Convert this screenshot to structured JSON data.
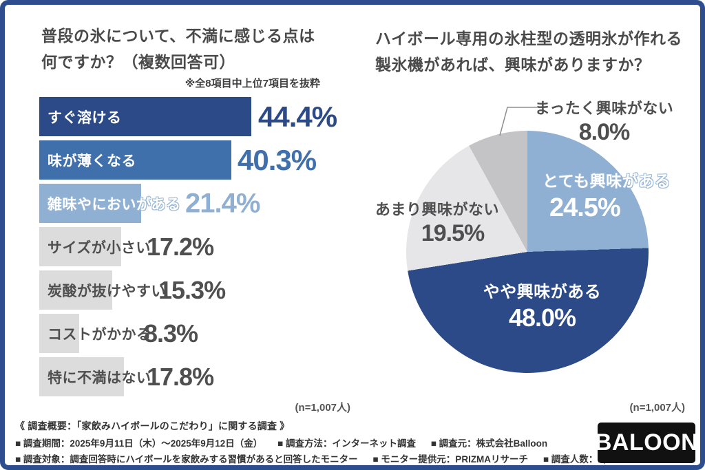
{
  "colors": {
    "frame": "#2e4d8e",
    "navy": "#2c4a87",
    "medium_blue": "#4070ab",
    "light_blue": "#8fb0d2",
    "bar_gray": "#dcdcdc",
    "pie_light_gray": "#e6e6e8",
    "pie_mid_gray": "#c4c4c6",
    "text_dark": "#4a4a4a"
  },
  "left_chart": {
    "title_line1": "普段の氷について、不満に感じる点は",
    "title_line2": "何ですか？（複数回答可）",
    "note": "※全8項目中上位7項目を抜粋",
    "n_label": "(n=1,007人)",
    "bars": [
      {
        "label": "すぐ溶ける",
        "value": "44.4%"
      },
      {
        "label": "味が薄くなる",
        "value": "40.3%"
      },
      {
        "label": "雑味やにおいがある",
        "value": "21.4%"
      },
      {
        "label": "サイズが小さい",
        "value": "17.2%"
      },
      {
        "label": "炭酸が抜けやすい",
        "value": "15.3%"
      },
      {
        "label": "コストがかかる",
        "value": "8.3%"
      },
      {
        "label": "特に不満はない",
        "value": "17.8%"
      }
    ]
  },
  "right_chart": {
    "title_line1": "ハイボール専用の氷柱型の透明氷が作れる",
    "title_line2": "製氷機があれば、興味がありますか？",
    "n_label": "(n=1,007人)",
    "slices": [
      {
        "label": "とても興味がある",
        "value": "24.5%"
      },
      {
        "label": "やや興味がある",
        "value": "48.0%"
      },
      {
        "label": "あまり興味がない",
        "value": "19.5%"
      },
      {
        "label": "まったく興味がない",
        "value": "8.0%"
      }
    ]
  },
  "footer": {
    "heading": "《 調査概要：「家飲みハイボールのこだわり」に関する調査 》",
    "row1": [
      "■ 調査期間：2025年9月11日（木）～2025年9月12日（金）",
      "■ 調査方法：インターネット調査",
      "■ 調査元：株式会社Balloon"
    ],
    "row2": [
      "■ 調査対象：調査回答時にハイボールを家飲みする習慣があると回答したモニター",
      "■ モニター提供元：PRIZMAリサーチ",
      "■ 調査人数：1,007人"
    ],
    "logo": "BALOON"
  },
  "chart_data": [
    {
      "type": "bar",
      "orientation": "horizontal",
      "title": "普段の氷について、不満に感じる点は何ですか？（複数回答可）",
      "note": "※全8項目中上位7項目を抜粋",
      "categories": [
        "すぐ溶ける",
        "味が薄くなる",
        "雑味やにおいがある",
        "サイズが小さい",
        "炭酸が抜けやすい",
        "コストがかかる",
        "特に不満はない"
      ],
      "values": [
        44.4,
        40.3,
        21.4,
        17.2,
        15.3,
        8.3,
        17.8
      ],
      "unit": "%",
      "xlim": [
        0,
        50
      ],
      "sample_size": "n=1,007人",
      "bar_colors": [
        "#2c4a87",
        "#4070ab",
        "#8fb0d2",
        "#dcdcdc",
        "#dcdcdc",
        "#dcdcdc",
        "#dcdcdc"
      ]
    },
    {
      "type": "pie",
      "title": "ハイボール専用の氷柱型の透明氷が作れる製氷機があれば、興味がありますか？",
      "labels": [
        "とても興味がある",
        "やや興味がある",
        "あまり興味がない",
        "まったく興味がない"
      ],
      "values": [
        24.5,
        48.0,
        19.5,
        8.0
      ],
      "colors": [
        "#8fb0d2",
        "#2c4a87",
        "#e6e6e8",
        "#c4c4c6"
      ],
      "start_angle_deg": 0,
      "direction": "clockwise-from-top",
      "sample_size": "n=1,007人"
    }
  ]
}
